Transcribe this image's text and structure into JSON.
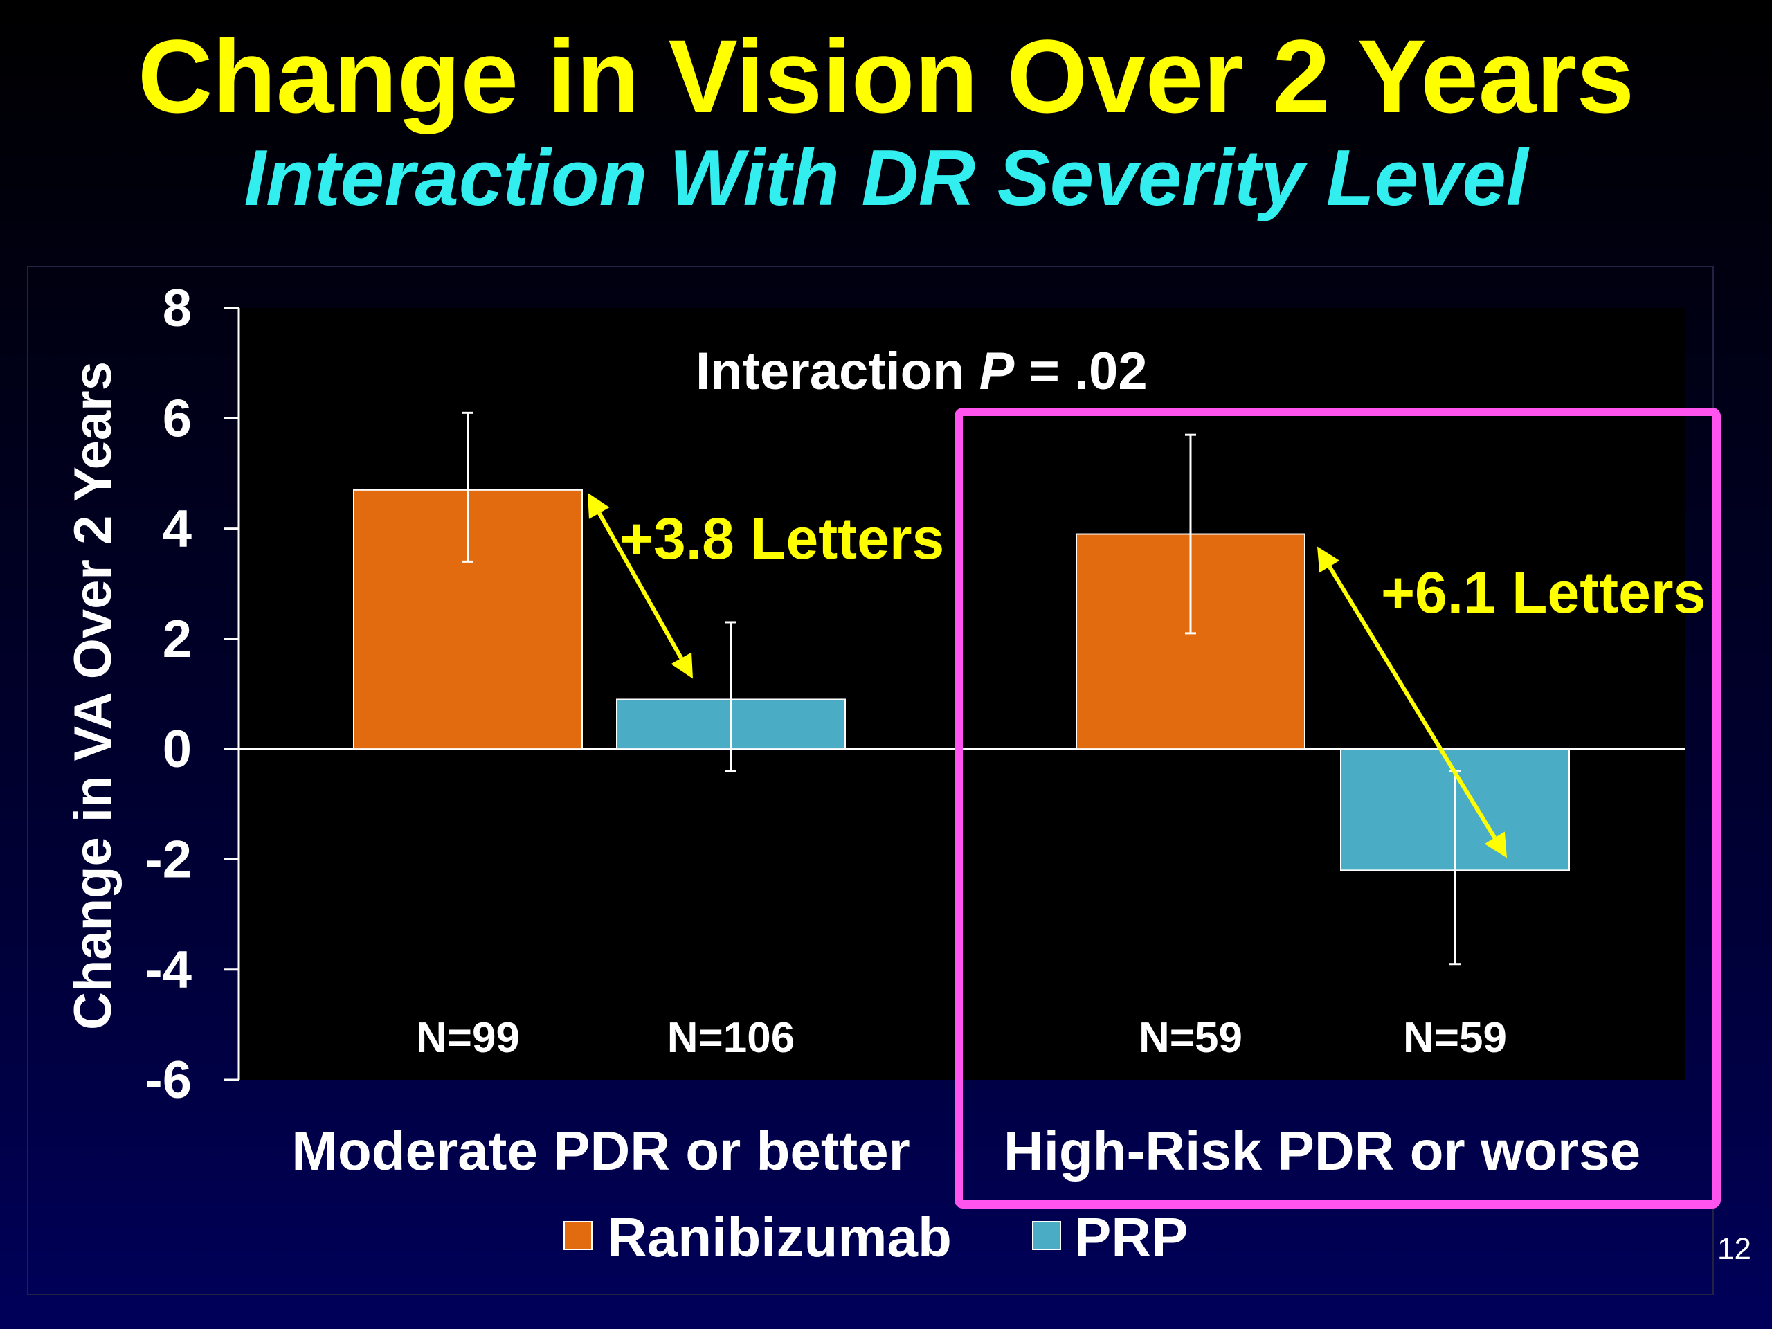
{
  "slide": {
    "title": "Change in Vision Over 2 Years",
    "subtitle": "Interaction With DR Severity Level",
    "page_number": "12"
  },
  "colors": {
    "ranibizumab": "#e26b10",
    "prp": "#4bacc6",
    "annotation": "#ffff00",
    "highlight_box": "#ff55ee",
    "plot_bg": "#000000"
  },
  "chart_data": {
    "type": "bar",
    "ylabel": "Change in VA Over 2 Years",
    "ylim": [
      -6,
      8
    ],
    "yticks": [
      8,
      6,
      4,
      2,
      0,
      -2,
      -4,
      -6
    ],
    "grid": false,
    "legend_position": "bottom-center",
    "categories": [
      "Moderate PDR or better",
      "High-Risk PDR or worse"
    ],
    "series": [
      {
        "name": "Ranibizumab",
        "values": [
          4.7,
          3.9
        ],
        "error_low": [
          3.4,
          2.1
        ],
        "error_high": [
          6.1,
          5.7
        ],
        "n_labels": [
          "N=99",
          "N=59"
        ]
      },
      {
        "name": "PRP",
        "values": [
          0.9,
          -2.2
        ],
        "error_low": [
          -0.4,
          -3.9
        ],
        "error_high": [
          2.3,
          -0.4
        ],
        "n_labels": [
          "N=106",
          "N=59"
        ]
      }
    ],
    "annotations": {
      "interaction_prefix": "Interaction ",
      "interaction_p": "P",
      "interaction_suffix": " = .02",
      "diff_labels": [
        "+3.8 Letters",
        "+6.1 Letters"
      ]
    }
  }
}
